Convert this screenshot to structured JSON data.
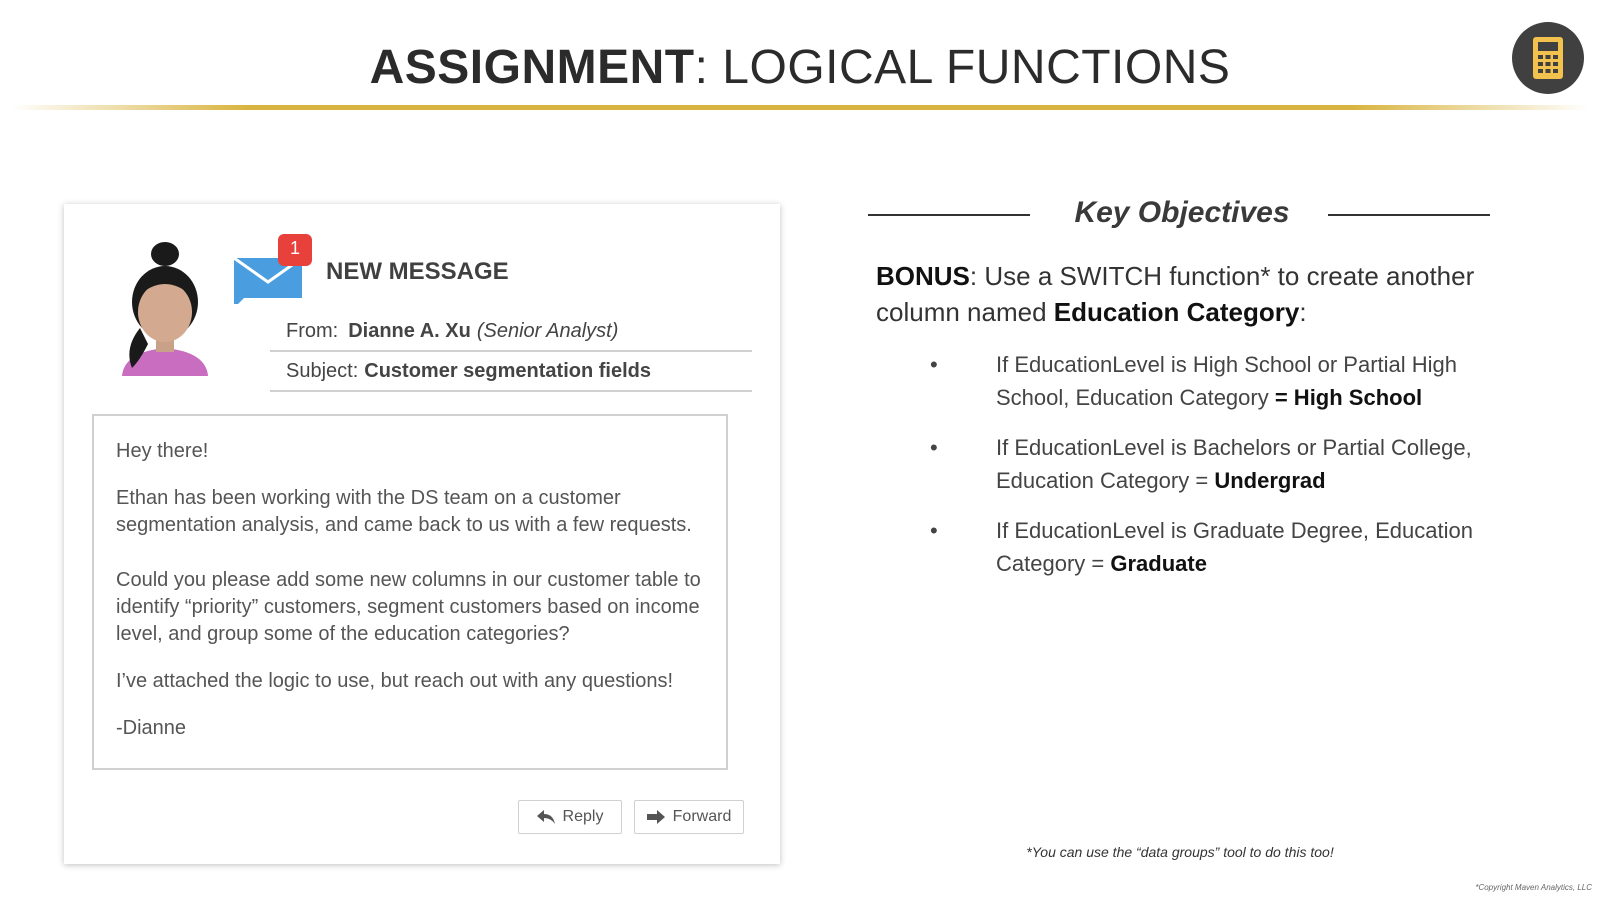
{
  "slide": {
    "title_strong": "ASSIGNMENT",
    "title_rest": ": LOGICAL FUNCTIONS",
    "badge_icon": "calculator-icon"
  },
  "email": {
    "notification_count": "1",
    "new_message_label": "NEW MESSAGE",
    "from_label": "From:",
    "from_name": "Dianne A. Xu",
    "from_role": "(Senior Analyst)",
    "subject_label": "Subject:",
    "subject_value": "Customer segmentation fields",
    "body": {
      "greeting": "Hey there!",
      "para1": "Ethan has been working with the DS team on a customer segmentation analysis, and came back to us with a few requests.",
      "para2": "Could you please add some new columns in our customer table to identify “priority” customers, segment customers based on income level, and group some of the education categories?",
      "para3": "I’ve attached the logic to use, but reach out with any questions!",
      "signoff": "-Dianne"
    },
    "reply_label": "Reply",
    "forward_label": "Forward"
  },
  "objectives": {
    "heading": "Key Objectives",
    "bonus_label": "BONUS",
    "bonus_text_1": ": Use a SWITCH function* to create another column named ",
    "bonus_bold": "Education Category",
    "bonus_text_2": ":",
    "bullets": [
      {
        "text": "If EducationLevel is High School or Partial High School, Education Category ",
        "bold": "= High School"
      },
      {
        "text": "If EducationLevel is Bachelors or Partial College, Education Category = ",
        "bold": "Undergrad"
      },
      {
        "text": "If EducationLevel is Graduate Degree, Education Category = ",
        "bold": "Graduate"
      }
    ],
    "footnote": "*You can use the “data groups” tool to do this too!"
  },
  "copyright": "*Copyright Maven Analytics, LLC",
  "colors": {
    "accent_gold": "#d9b440",
    "badge_bg": "#404040",
    "calculator": "#f2c14e",
    "mail_blue": "#4a9ee0",
    "notification_red": "#e8403a",
    "avatar_shirt": "#c86dc0"
  }
}
